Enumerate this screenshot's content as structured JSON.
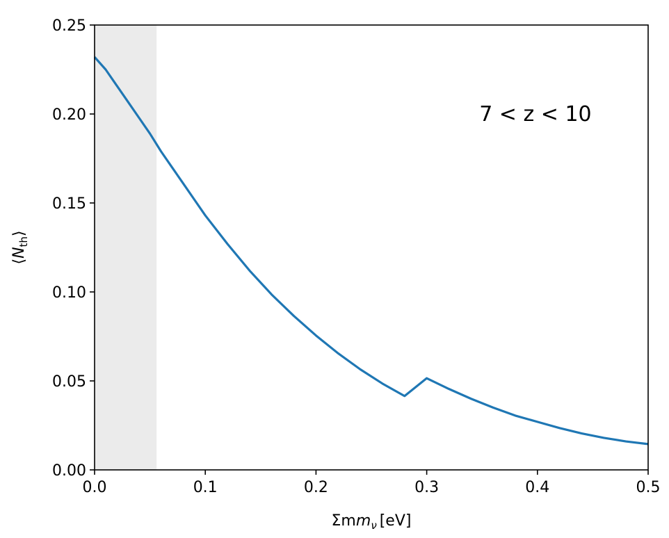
{
  "chart_data": {
    "type": "line",
    "title": "",
    "xlabel": {
      "main": "Σm",
      "sub": "ν",
      "unit": "[eV]"
    },
    "ylabel": {
      "open": "⟨",
      "main": "N",
      "sub": "th",
      "close": "⟩"
    },
    "xlim": [
      0.0,
      0.5
    ],
    "ylim": [
      0.0,
      0.25
    ],
    "xticks": [
      0.0,
      0.1,
      0.2,
      0.3,
      0.4,
      0.5
    ],
    "xtick_labels": [
      "0.0",
      "0.1",
      "0.2",
      "0.3",
      "0.4",
      "0.5"
    ],
    "yticks": [
      0.0,
      0.05,
      0.1,
      0.15,
      0.2,
      0.25
    ],
    "ytick_labels": [
      "0.00",
      "0.05",
      "0.10",
      "0.15",
      "0.20",
      "0.25"
    ],
    "grid": false,
    "shaded_region": {
      "x": [
        0.0,
        0.056
      ],
      "color": "#ebebeb"
    },
    "annotation": {
      "text": "7 < z < 10",
      "x": 0.35,
      "y": 0.2
    },
    "series": [
      {
        "color": "#1f77b4",
        "x": [
          0.0,
          0.01,
          0.02,
          0.03,
          0.04,
          0.05,
          0.06,
          0.07,
          0.08,
          0.09,
          0.1,
          0.12,
          0.14,
          0.16,
          0.18,
          0.2,
          0.22,
          0.24,
          0.26,
          0.28,
          0.3,
          0.32,
          0.34,
          0.36,
          0.38,
          0.4,
          0.42,
          0.44,
          0.46,
          0.48,
          0.5
        ],
        "y": [
          0.232,
          0.225,
          0.216,
          0.207,
          0.198,
          0.189,
          0.179,
          0.17,
          0.161,
          0.152,
          0.143,
          0.127,
          0.112,
          0.0985,
          0.0865,
          0.0755,
          0.0655,
          0.0565,
          0.0485,
          0.0415,
          0.0515,
          0.0455,
          0.04,
          0.035,
          0.0305,
          0.027,
          0.0235,
          0.0205,
          0.018,
          0.016,
          0.0145
        ]
      }
    ]
  }
}
